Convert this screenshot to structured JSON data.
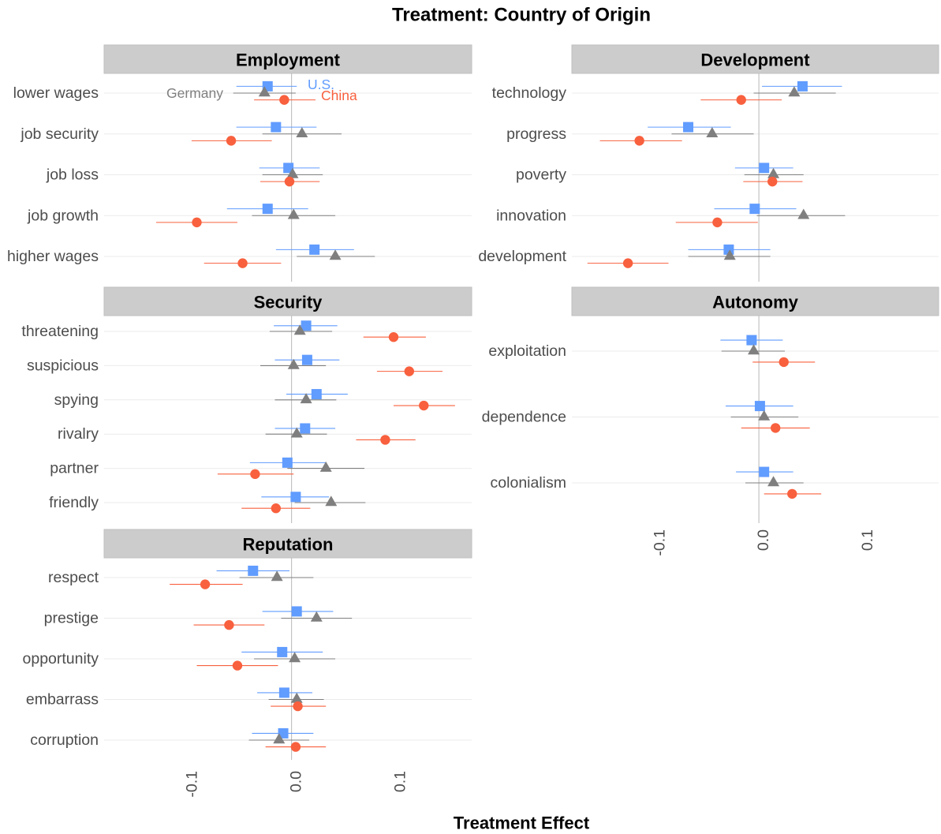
{
  "chart_data": {
    "type": "scatter",
    "title": "Treatment: Country of Origin",
    "xlabel": "Treatment Effect",
    "xlim": [
      -0.18,
      0.173
    ],
    "xticks": [
      -0.1,
      0.0,
      0.1
    ],
    "xtick_labels": [
      "-0.1",
      "0.0",
      "0.1"
    ],
    "reference_line_x": 0,
    "grid": {
      "x": false,
      "y": true
    },
    "series": [
      {
        "name": "U.S.",
        "marker": "square",
        "color": "#619CFF"
      },
      {
        "name": "Germany",
        "marker": "triangle",
        "color": "#7F7F7F"
      },
      {
        "name": "China",
        "marker": "circle",
        "color": "#F8603E"
      }
    ],
    "panels": [
      {
        "title": "Employment",
        "categories": [
          "lower wages",
          "job security",
          "job loss",
          "job growth",
          "higher wages"
        ],
        "series": [
          {
            "estimate": [
              -0.023,
              -0.015,
              -0.003,
              -0.023,
              0.022
            ],
            "ci_low": [
              -0.053,
              -0.053,
              -0.031,
              -0.062,
              -0.015
            ],
            "ci_high": [
              0.005,
              0.024,
              0.027,
              0.016,
              0.06
            ]
          },
          {
            "estimate": [
              -0.026,
              0.01,
              0.001,
              0.002,
              0.042
            ],
            "ci_low": [
              -0.056,
              -0.028,
              -0.028,
              -0.038,
              0.005
            ],
            "ci_high": [
              0.004,
              0.048,
              0.03,
              0.042,
              0.08
            ]
          },
          {
            "estimate": [
              -0.007,
              -0.058,
              -0.002,
              -0.091,
              -0.047
            ],
            "ci_low": [
              -0.036,
              -0.096,
              -0.03,
              -0.13,
              -0.084
            ],
            "ci_high": [
              0.023,
              -0.019,
              0.027,
              -0.052,
              -0.01
            ]
          }
        ]
      },
      {
        "title": "Development",
        "categories": [
          "technology",
          "progress",
          "poverty",
          "innovation",
          "development"
        ],
        "series": [
          {
            "estimate": [
              0.042,
              -0.068,
              0.005,
              -0.004,
              -0.029
            ],
            "ci_low": [
              0.003,
              -0.107,
              -0.023,
              -0.043,
              -0.068
            ],
            "ci_high": [
              0.08,
              -0.027,
              0.033,
              0.036,
              0.011
            ]
          },
          {
            "estimate": [
              0.034,
              -0.045,
              0.014,
              0.043,
              -0.028
            ],
            "ci_low": [
              -0.005,
              -0.084,
              -0.014,
              -0.002,
              -0.068
            ],
            "ci_high": [
              0.074,
              -0.005,
              0.043,
              0.083,
              0.011
            ]
          },
          {
            "estimate": [
              -0.017,
              -0.115,
              0.013,
              -0.04,
              -0.126
            ],
            "ci_low": [
              -0.056,
              -0.153,
              -0.015,
              -0.08,
              -0.165
            ],
            "ci_high": [
              0.022,
              -0.074,
              0.042,
              -0.001,
              -0.087
            ]
          }
        ]
      },
      {
        "title": "Security",
        "categories": [
          "threatening",
          "suspicious",
          "spying",
          "rivalry",
          "partner",
          "friendly"
        ],
        "series": [
          {
            "estimate": [
              0.014,
              0.015,
              0.024,
              0.013,
              -0.004,
              0.004
            ],
            "ci_low": [
              -0.017,
              -0.016,
              -0.005,
              -0.016,
              -0.04,
              -0.029
            ],
            "ci_high": [
              0.044,
              0.046,
              0.054,
              0.042,
              0.033,
              0.036
            ]
          },
          {
            "estimate": [
              0.008,
              0.002,
              0.014,
              0.005,
              0.033,
              0.038
            ],
            "ci_low": [
              -0.021,
              -0.03,
              -0.016,
              -0.025,
              -0.004,
              0.003
            ],
            "ci_high": [
              0.039,
              0.033,
              0.043,
              0.034,
              0.07,
              0.071
            ]
          },
          {
            "estimate": [
              0.098,
              0.113,
              0.127,
              0.09,
              -0.035,
              -0.015
            ],
            "ci_low": [
              0.069,
              0.082,
              0.098,
              0.062,
              -0.071,
              -0.048
            ],
            "ci_high": [
              0.129,
              0.145,
              0.157,
              0.119,
              0.002,
              0.018
            ]
          }
        ]
      },
      {
        "title": "Autonomy",
        "categories": [
          "exploitation",
          "dependence",
          "colonialism"
        ],
        "series": [
          {
            "estimate": [
              -0.007,
              0.001,
              0.005
            ],
            "ci_low": [
              -0.037,
              -0.032,
              -0.022
            ],
            "ci_high": [
              0.023,
              0.033,
              0.033
            ]
          },
          {
            "estimate": [
              -0.005,
              0.005,
              0.014
            ],
            "ci_low": [
              -0.036,
              -0.027,
              -0.013
            ],
            "ci_high": [
              0.025,
              0.038,
              0.043
            ]
          },
          {
            "estimate": [
              0.024,
              0.016,
              0.032
            ],
            "ci_low": [
              -0.006,
              -0.017,
              0.005
            ],
            "ci_high": [
              0.054,
              0.049,
              0.06
            ]
          }
        ]
      },
      {
        "title": "Reputation",
        "categories": [
          "respect",
          "prestige",
          "opportunity",
          "embarrass",
          "corruption"
        ],
        "series": [
          {
            "estimate": [
              -0.037,
              0.005,
              -0.009,
              -0.007,
              -0.008
            ],
            "ci_low": [
              -0.072,
              -0.028,
              -0.048,
              -0.033,
              -0.038
            ],
            "ci_high": [
              -0.002,
              0.04,
              0.03,
              0.02,
              0.021
            ]
          },
          {
            "estimate": [
              -0.014,
              0.024,
              0.003,
              0.005,
              -0.012
            ],
            "ci_low": [
              -0.05,
              -0.01,
              -0.036,
              -0.022,
              -0.041
            ],
            "ci_high": [
              0.021,
              0.058,
              0.042,
              0.031,
              0.017
            ]
          },
          {
            "estimate": [
              -0.083,
              -0.06,
              -0.052,
              0.006,
              0.004
            ],
            "ci_low": [
              -0.117,
              -0.094,
              -0.091,
              -0.02,
              -0.025
            ],
            "ci_high": [
              -0.047,
              -0.026,
              -0.013,
              0.033,
              0.033
            ]
          }
        ]
      }
    ]
  }
}
